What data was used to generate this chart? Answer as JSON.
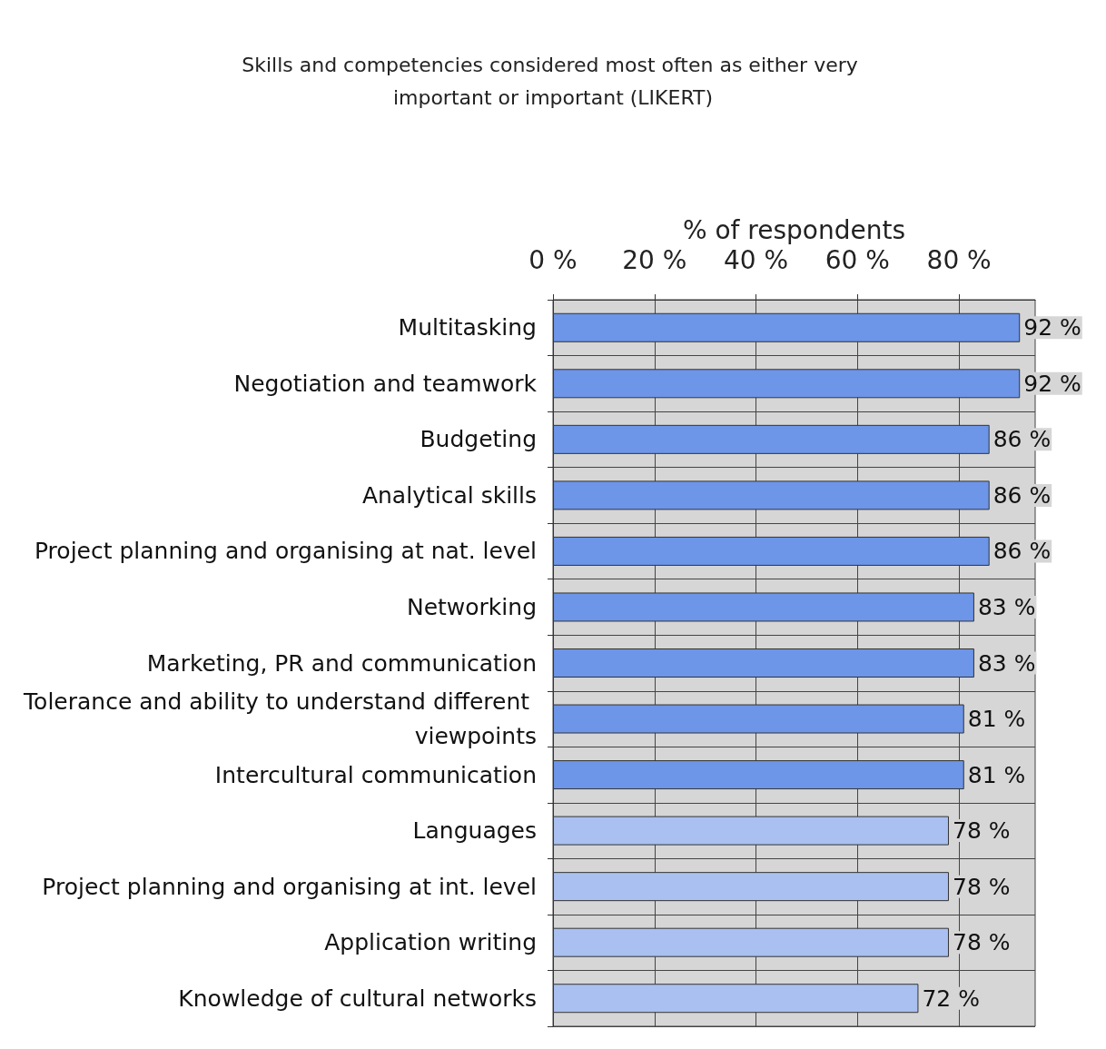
{
  "chart_data": {
    "type": "bar",
    "orientation": "horizontal",
    "title": "Skills and competencies considered most often as either very important or important (LIKERT)",
    "xlabel": "% of respondents",
    "categories": [
      "Multitasking",
      "Negotiation and teamwork",
      "Budgeting",
      "Analytical skills",
      "Project planning and organising at nat. level",
      "Networking",
      "Marketing, PR and communication",
      "Tolerance and ability to understand different viewpoints",
      "Intercultural communication",
      "Languages",
      "Project planning and organising at int. level",
      "Application writing",
      "Knowledge of cultural networks"
    ],
    "values": [
      92,
      92,
      86,
      86,
      86,
      83,
      83,
      81,
      81,
      78,
      78,
      78,
      72
    ],
    "value_labels": [
      "92 %",
      "92 %",
      "86 %",
      "86 %",
      "86 %",
      "83 %",
      "83 %",
      "81 %",
      "81 %",
      "78 %",
      "78 %",
      "78 %",
      "72 %"
    ],
    "colors": [
      "#6d95e8",
      "#6d95e8",
      "#6d95e8",
      "#6d95e8",
      "#6d95e8",
      "#6d95e8",
      "#6d95e8",
      "#6d95e8",
      "#6d95e8",
      "#a9c0f0",
      "#a9c0f0",
      "#a9c0f0",
      "#a9c0f0"
    ],
    "xlim": [
      0,
      95
    ],
    "xticks": [
      {
        "value": 0,
        "label": "0 %"
      },
      {
        "value": 20,
        "label": "20 %"
      },
      {
        "value": 40,
        "label": "40 %"
      },
      {
        "value": 60,
        "label": "60 %"
      },
      {
        "value": 80,
        "label": "80 %"
      }
    ],
    "grid": true
  }
}
